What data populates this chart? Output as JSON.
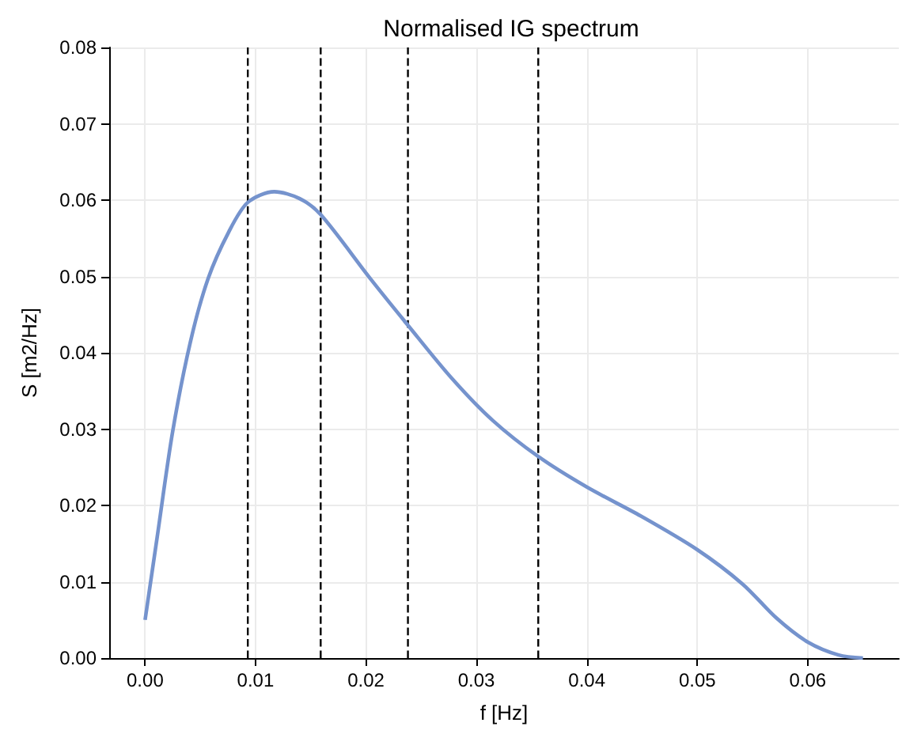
{
  "chart_data": {
    "type": "line",
    "title": "Normalised IG spectrum",
    "xlabel": "f [Hz]",
    "ylabel": "S [m2/Hz]",
    "x": [
      0.0,
      0.0011,
      0.0025,
      0.0041,
      0.0057,
      0.0076,
      0.0093,
      0.0117,
      0.014,
      0.0159,
      0.0204,
      0.0238,
      0.0278,
      0.0315,
      0.0356,
      0.04,
      0.0449,
      0.05,
      0.0541,
      0.0572,
      0.06,
      0.0628,
      0.065
    ],
    "series": [
      {
        "color": "#7593cd",
        "values": [
          0.005,
          0.0159,
          0.0297,
          0.0414,
          0.0497,
          0.0559,
          0.0597,
          0.0611,
          0.0602,
          0.0581,
          0.0497,
          0.0436,
          0.0366,
          0.0311,
          0.0264,
          0.0224,
          0.0186,
          0.0142,
          0.0097,
          0.0052,
          0.0021,
          0.0004,
          0.0
        ]
      }
    ],
    "xlim": [
      -0.00325,
      0.06825
    ],
    "xticks": [
      {
        "value": 0,
        "label": "0.00"
      },
      0.01,
      0.02,
      0.03,
      0.04,
      0.05,
      0.06
    ],
    "ylim": [
      0,
      0.08
    ],
    "yticks": [
      {
        "value": 0,
        "label": "0.00"
      },
      0.01,
      0.02,
      0.03,
      0.04,
      0.05,
      0.06,
      0.07,
      0.08
    ],
    "grid": true,
    "marker": "none",
    "line_style": "solid",
    "ref_lines": [
      {
        "axis": "x",
        "value": 0.0093,
        "color": "#000000",
        "line_style": "dashed"
      },
      {
        "axis": "x",
        "value": 0.0159,
        "color": "#000000",
        "line_style": "dashed"
      },
      {
        "axis": "x",
        "value": 0.0238,
        "color": "#000000",
        "line_style": "dashed"
      },
      {
        "axis": "x",
        "value": 0.0356,
        "color": "#000000",
        "line_style": "dashed"
      }
    ]
  }
}
